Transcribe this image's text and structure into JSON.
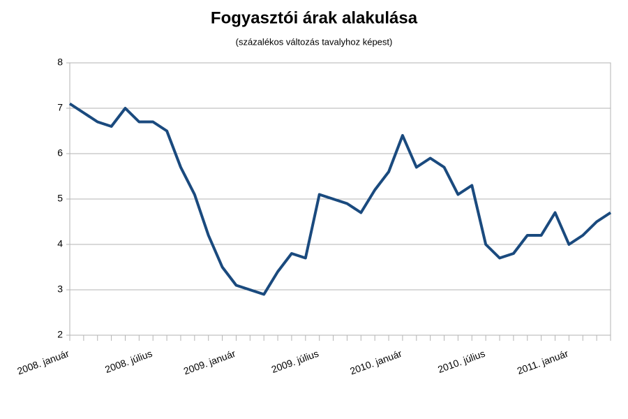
{
  "chart_data": {
    "type": "line",
    "title": "Fogyasztói árak alakulása",
    "subtitle": "(százalékos változás tavalyhoz képest)",
    "categories": [
      "2008. január",
      null,
      null,
      null,
      null,
      null,
      "2008. július",
      null,
      null,
      null,
      null,
      null,
      "2009. január",
      null,
      null,
      null,
      null,
      null,
      "2009. július",
      null,
      null,
      null,
      null,
      null,
      "2010. január",
      null,
      null,
      null,
      null,
      null,
      "2010. július",
      null,
      null,
      null,
      null,
      null,
      "2011. január",
      null,
      null,
      null
    ],
    "series": [
      {
        "name": "Fogyasztói árak",
        "color": "#1a4a7e",
        "values": [
          7.1,
          6.9,
          6.7,
          6.6,
          7.0,
          6.7,
          6.7,
          6.5,
          5.7,
          5.1,
          4.2,
          3.5,
          3.1,
          3.0,
          2.9,
          3.4,
          3.8,
          3.7,
          5.1,
          5.0,
          4.9,
          4.7,
          5.2,
          5.6,
          6.4,
          5.7,
          5.9,
          5.7,
          5.1,
          5.3,
          4.0,
          3.7,
          3.8,
          4.2,
          4.2,
          4.7,
          4.0,
          4.2,
          4.5,
          4.7
        ]
      }
    ],
    "ylim": [
      2,
      8
    ],
    "yticks": [
      2,
      3,
      4,
      5,
      6,
      7,
      8
    ],
    "grid": true
  }
}
